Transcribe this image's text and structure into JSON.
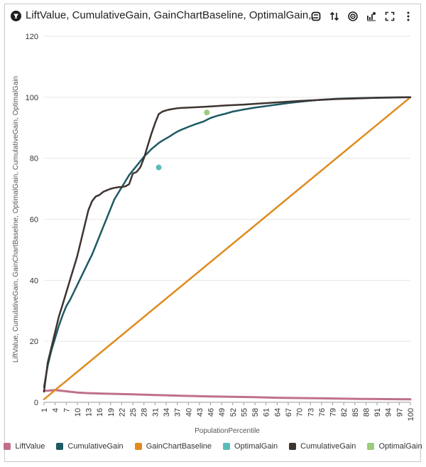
{
  "header": {
    "title": "LiftValue, CumulativeGain, GainChartBaseline, OptimalGain, CumulativeGain, OptimalGain",
    "tools": [
      {
        "name": "filter-toggle-icon"
      },
      {
        "name": "sort-icon"
      },
      {
        "name": "target-icon"
      },
      {
        "name": "chart-type-icon"
      },
      {
        "name": "fullscreen-icon"
      },
      {
        "name": "more-options-icon"
      }
    ]
  },
  "chart_data": {
    "type": "line",
    "ylabel": "LiftValue, CumulativeGain, GainChartBaseline, OptimalGain, CumulativeGain, OptimalGain",
    "xlabel": "PopulationPercentile",
    "xlim": [
      1,
      100
    ],
    "ylim": [
      0,
      120
    ],
    "yticks": [
      0,
      20,
      40,
      60,
      80,
      100,
      120
    ],
    "xticks": [
      "1",
      "4",
      "7",
      "10",
      "13",
      "16",
      "19",
      "22",
      "25",
      "28",
      "31",
      "34",
      "37",
      "40",
      "43",
      "46",
      "49",
      "52",
      "55",
      "58",
      "61",
      "64",
      "67",
      "70",
      "73",
      "76",
      "79",
      "82",
      "85",
      "88",
      "91",
      "94",
      "97",
      "100"
    ],
    "grid": true,
    "legend_position": "bottom",
    "series": [
      {
        "name": "LiftValue",
        "color": "#c0708a",
        "width": 3,
        "points": [
          [
            1,
            3.7
          ],
          [
            4,
            4.0
          ],
          [
            7,
            3.6
          ],
          [
            10,
            3.2
          ],
          [
            13,
            3.0
          ],
          [
            16,
            2.9
          ],
          [
            19,
            2.8
          ],
          [
            22,
            2.7
          ],
          [
            25,
            2.6
          ],
          [
            28,
            2.5
          ],
          [
            31,
            2.4
          ],
          [
            34,
            2.3
          ],
          [
            37,
            2.2
          ],
          [
            40,
            2.1
          ],
          [
            43,
            2.0
          ],
          [
            46,
            1.9
          ],
          [
            52,
            1.8
          ],
          [
            58,
            1.7
          ],
          [
            64,
            1.5
          ],
          [
            70,
            1.4
          ],
          [
            76,
            1.3
          ],
          [
            82,
            1.2
          ],
          [
            88,
            1.1
          ],
          [
            94,
            1.05
          ],
          [
            100,
            1.0
          ]
        ]
      },
      {
        "name": "CumulativeGain",
        "color": "#1e5a64",
        "width": 2.5,
        "points": [
          [
            1,
            5
          ],
          [
            2,
            12
          ],
          [
            3,
            17
          ],
          [
            4,
            21
          ],
          [
            5,
            25
          ],
          [
            6,
            28.5
          ],
          [
            7,
            31.5
          ],
          [
            8,
            33.5
          ],
          [
            9,
            36
          ],
          [
            10,
            38.5
          ],
          [
            11,
            41
          ],
          [
            12,
            43.5
          ],
          [
            13,
            46
          ],
          [
            14,
            48.5
          ],
          [
            15,
            51.5
          ],
          [
            16,
            54.5
          ],
          [
            17,
            57.5
          ],
          [
            18,
            60.5
          ],
          [
            19,
            63.5
          ],
          [
            20,
            66.5
          ],
          [
            21,
            68.5
          ],
          [
            22,
            70.5
          ],
          [
            23,
            72.5
          ],
          [
            24,
            74.5
          ],
          [
            25,
            76
          ],
          [
            26,
            77.5
          ],
          [
            27,
            79
          ],
          [
            28,
            80.5
          ],
          [
            29,
            81.7
          ],
          [
            30,
            83
          ],
          [
            31,
            84
          ],
          [
            32,
            85
          ],
          [
            33,
            85.8
          ],
          [
            34,
            86.5
          ],
          [
            35,
            87.2
          ],
          [
            36,
            88
          ],
          [
            37,
            88.7
          ],
          [
            38,
            89.3
          ],
          [
            40,
            90.3
          ],
          [
            42,
            91.2
          ],
          [
            44,
            92
          ],
          [
            46,
            93.2
          ],
          [
            48,
            94
          ],
          [
            50,
            94.6
          ],
          [
            52,
            95.3
          ],
          [
            55,
            96
          ],
          [
            58,
            96.6
          ],
          [
            61,
            97.1
          ],
          [
            64,
            97.6
          ],
          [
            67,
            98.1
          ],
          [
            70,
            98.5
          ],
          [
            73,
            98.9
          ],
          [
            76,
            99.2
          ],
          [
            80,
            99.5
          ],
          [
            85,
            99.7
          ],
          [
            90,
            99.85
          ],
          [
            95,
            99.95
          ],
          [
            100,
            100
          ]
        ]
      },
      {
        "name": "GainChartBaseline",
        "color": "#e08a1e",
        "width": 2.5,
        "points": [
          [
            1,
            1
          ],
          [
            100,
            100
          ]
        ]
      },
      {
        "name": "OptimalGain",
        "color": "#5bbcb8",
        "width": 0,
        "marker": true,
        "points": [
          [
            32,
            77
          ]
        ]
      },
      {
        "name": "CumulativeGain",
        "color": "#3e3430",
        "width": 2.5,
        "points": [
          [
            1,
            3.5
          ],
          [
            2,
            13
          ],
          [
            3,
            18
          ],
          [
            4,
            23
          ],
          [
            5,
            28
          ],
          [
            6,
            32
          ],
          [
            7,
            36
          ],
          [
            8,
            40
          ],
          [
            9,
            44
          ],
          [
            10,
            48
          ],
          [
            11,
            53
          ],
          [
            12,
            58
          ],
          [
            13,
            63
          ],
          [
            14,
            66
          ],
          [
            15,
            67.5
          ],
          [
            16,
            68
          ],
          [
            17,
            69
          ],
          [
            18,
            69.5
          ],
          [
            19,
            70
          ],
          [
            20,
            70.3
          ],
          [
            21,
            70.5
          ],
          [
            22,
            70.6
          ],
          [
            23,
            70.8
          ],
          [
            24,
            71.5
          ],
          [
            25,
            75
          ],
          [
            26,
            75.5
          ],
          [
            27,
            77
          ],
          [
            28,
            80
          ],
          [
            29,
            84
          ],
          [
            30,
            88
          ],
          [
            31,
            91.5
          ],
          [
            32,
            94.5
          ],
          [
            33,
            95.3
          ],
          [
            34,
            95.7
          ],
          [
            35,
            96
          ],
          [
            36,
            96.2
          ],
          [
            37,
            96.4
          ],
          [
            38,
            96.5
          ],
          [
            40,
            96.6
          ],
          [
            43,
            96.8
          ],
          [
            46,
            97
          ],
          [
            50,
            97.3
          ],
          [
            55,
            97.6
          ],
          [
            60,
            98
          ],
          [
            65,
            98.4
          ],
          [
            70,
            98.8
          ],
          [
            75,
            99.1
          ],
          [
            80,
            99.4
          ],
          [
            85,
            99.6
          ],
          [
            90,
            99.8
          ],
          [
            95,
            99.9
          ],
          [
            100,
            100
          ]
        ]
      },
      {
        "name": "OptimalGain",
        "color": "#9bcb7c",
        "width": 0,
        "marker": true,
        "points": [
          [
            45,
            95
          ]
        ]
      }
    ]
  }
}
